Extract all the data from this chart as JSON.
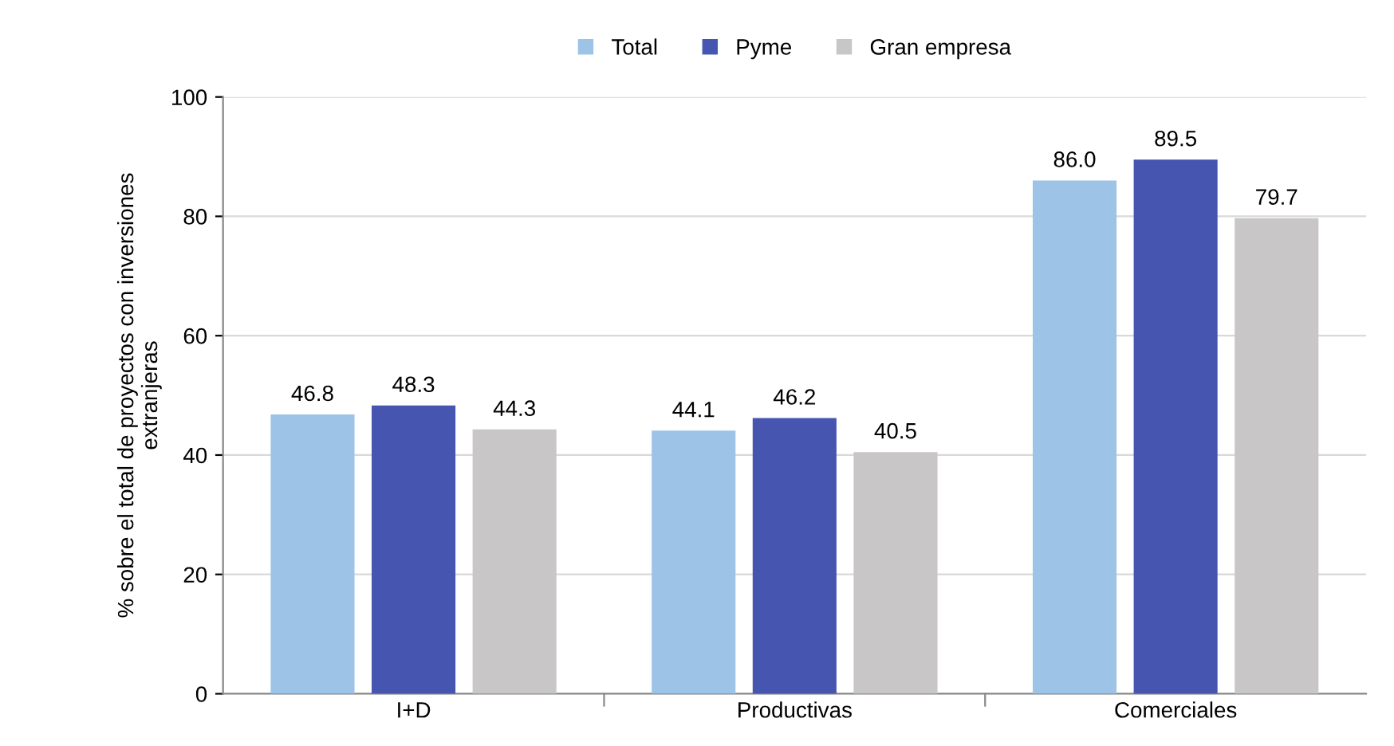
{
  "chart_data": {
    "type": "bar",
    "ylabel": "% sobre el total de proyectos con inversiones\nextranjeras",
    "categories": [
      "I+D",
      "Productivas",
      "Comerciales"
    ],
    "series": [
      {
        "name": "Total",
        "color": "#9dc3e6",
        "values": [
          46.8,
          44.1,
          86.0
        ],
        "value_labels": [
          "46.8",
          "44.1",
          "86.0"
        ]
      },
      {
        "name": "Pyme",
        "color": "#4656b0",
        "values": [
          48.3,
          46.2,
          89.5
        ],
        "value_labels": [
          "48.3",
          "46.2",
          "89.5"
        ]
      },
      {
        "name": "Gran empresa",
        "color": "#c9c6c8",
        "values": [
          44.3,
          40.5,
          79.7
        ],
        "value_labels": [
          "44.3",
          "40.5",
          "79.7"
        ]
      }
    ],
    "ylim": [
      0,
      100
    ],
    "yticks": [
      0,
      20,
      40,
      60,
      80,
      100
    ],
    "grid": "y",
    "legend": "top"
  }
}
